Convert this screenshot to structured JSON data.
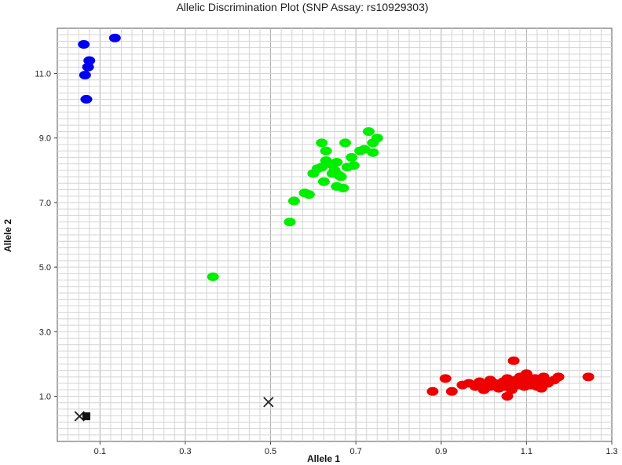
{
  "chart_data": {
    "type": "scatter",
    "title": "Allelic Discrimination Plot (SNP Assay: rs10929303)",
    "xlabel": "Allele 1",
    "ylabel": "Allele 2",
    "xlim": [
      0.0,
      1.3
    ],
    "ylim": [
      -0.4,
      12.4
    ],
    "x_ticks": [
      "0.1",
      "0.3",
      "0.5",
      "0.7",
      "0.9",
      "1.1",
      "1.3"
    ],
    "y_ticks": [
      "1.0",
      "3.0",
      "5.0",
      "7.0",
      "9.0",
      "11.0"
    ],
    "grid": true,
    "series": [
      {
        "color": "#0000ee",
        "marker": "ellipse",
        "points": [
          [
            0.062,
            11.9
          ],
          [
            0.135,
            12.1
          ],
          [
            0.075,
            11.4
          ],
          [
            0.072,
            11.2
          ],
          [
            0.065,
            10.95
          ],
          [
            0.068,
            10.2
          ]
        ]
      },
      {
        "color": "#00ee00",
        "marker": "ellipse",
        "points": [
          [
            0.365,
            4.7
          ],
          [
            0.545,
            6.4
          ],
          [
            0.555,
            7.05
          ],
          [
            0.58,
            7.3
          ],
          [
            0.59,
            7.25
          ],
          [
            0.6,
            7.9
          ],
          [
            0.61,
            8.05
          ],
          [
            0.62,
            8.1
          ],
          [
            0.625,
            7.65
          ],
          [
            0.63,
            8.3
          ],
          [
            0.64,
            8.2
          ],
          [
            0.645,
            7.9
          ],
          [
            0.65,
            8.0
          ],
          [
            0.655,
            8.25
          ],
          [
            0.66,
            7.85
          ],
          [
            0.665,
            7.8
          ],
          [
            0.62,
            8.85
          ],
          [
            0.63,
            8.6
          ],
          [
            0.67,
            7.45
          ],
          [
            0.655,
            7.5
          ],
          [
            0.675,
            8.85
          ],
          [
            0.69,
            8.4
          ],
          [
            0.695,
            8.15
          ],
          [
            0.71,
            8.6
          ],
          [
            0.72,
            8.65
          ],
          [
            0.73,
            9.2
          ],
          [
            0.74,
            8.55
          ],
          [
            0.74,
            8.85
          ],
          [
            0.75,
            9.0
          ],
          [
            0.68,
            8.1
          ]
        ]
      },
      {
        "color": "#ee0000",
        "marker": "ellipse",
        "points": [
          [
            0.88,
            1.15
          ],
          [
            0.91,
            1.55
          ],
          [
            0.925,
            1.15
          ],
          [
            0.95,
            1.35
          ],
          [
            0.965,
            1.4
          ],
          [
            0.98,
            1.3
          ],
          [
            0.99,
            1.45
          ],
          [
            1.0,
            1.2
          ],
          [
            1.005,
            1.35
          ],
          [
            1.015,
            1.3
          ],
          [
            1.025,
            1.4
          ],
          [
            1.035,
            1.25
          ],
          [
            1.045,
            1.45
          ],
          [
            1.05,
            1.3
          ],
          [
            1.055,
            1.55
          ],
          [
            1.06,
            1.4
          ],
          [
            1.065,
            1.2
          ],
          [
            1.07,
            2.1
          ],
          [
            1.075,
            1.5
          ],
          [
            1.08,
            1.35
          ],
          [
            1.085,
            1.6
          ],
          [
            1.09,
            1.45
          ],
          [
            1.095,
            1.3
          ],
          [
            1.1,
            1.7
          ],
          [
            1.105,
            1.5
          ],
          [
            1.11,
            1.35
          ],
          [
            1.12,
            1.55
          ],
          [
            1.125,
            1.3
          ],
          [
            1.13,
            1.45
          ],
          [
            1.14,
            1.6
          ],
          [
            1.15,
            1.4
          ],
          [
            1.165,
            1.5
          ],
          [
            1.175,
            1.6
          ],
          [
            1.245,
            1.6
          ],
          [
            1.055,
            1.0
          ],
          [
            1.015,
            1.5
          ],
          [
            1.04,
            1.35
          ],
          [
            1.07,
            1.45
          ],
          [
            1.11,
            1.55
          ],
          [
            1.135,
            1.25
          ]
        ]
      },
      {
        "color": "#222222",
        "marker": "x",
        "points": [
          [
            0.052,
            0.38
          ],
          [
            0.495,
            0.82
          ]
        ]
      },
      {
        "color": "#111111",
        "marker": "square",
        "points": [
          [
            0.068,
            0.38
          ]
        ]
      }
    ]
  }
}
